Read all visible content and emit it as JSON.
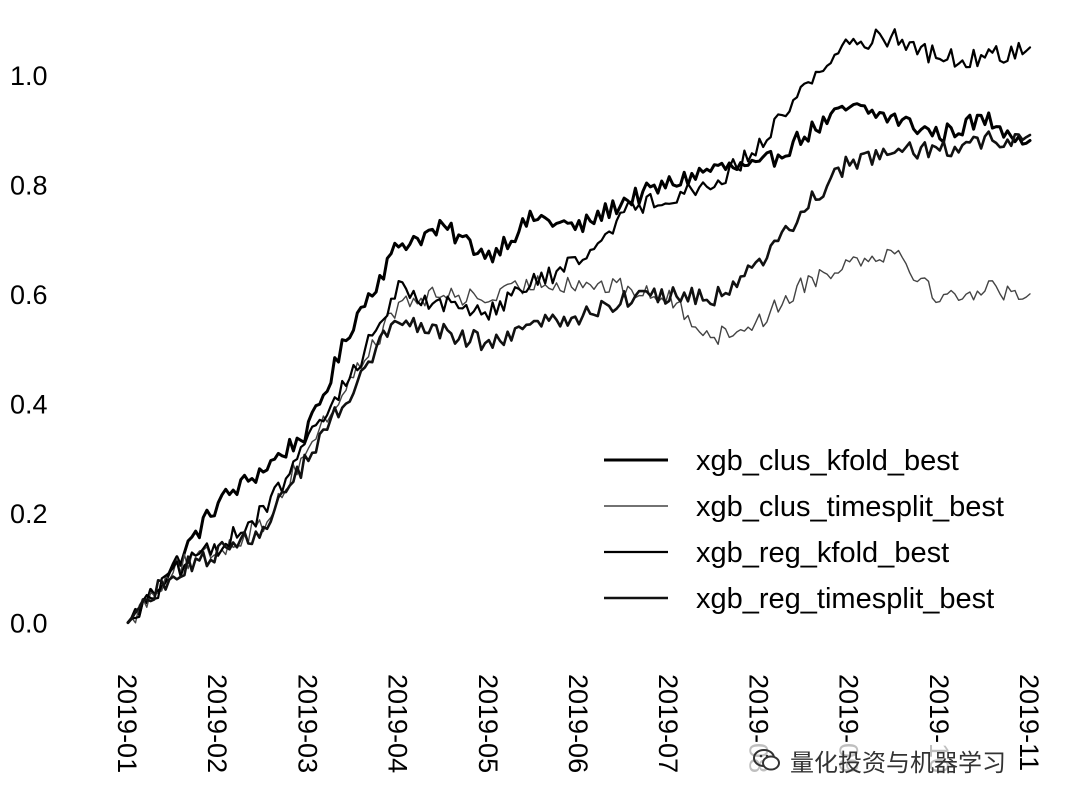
{
  "chart_data": {
    "type": "line",
    "title": "",
    "xlabel": "",
    "ylabel": "",
    "xlim": [
      "2019-01",
      "2019-11"
    ],
    "ylim": [
      -0.05,
      1.1
    ],
    "grid": false,
    "legend_position": "bottom-right",
    "x_tick_labels": [
      "2019-01",
      "2019-02",
      "2019-03",
      "2019-04",
      "2019-05",
      "2019-06",
      "2019-07",
      "2019-08",
      "2019-09",
      "2019-10",
      "2019-11"
    ],
    "y_tick_labels": [
      "0.0",
      "0.2",
      "0.4",
      "0.6",
      "0.8",
      "1.0"
    ],
    "y_ticks": [
      0.0,
      0.2,
      0.4,
      0.6,
      0.8,
      1.0
    ],
    "x": [
      "2019-01",
      "2019-01.5",
      "2019-02",
      "2019-02.5",
      "2019-03",
      "2019-03.5",
      "2019-04",
      "2019-04.5",
      "2019-05",
      "2019-05.5",
      "2019-06",
      "2019-06.5",
      "2019-07",
      "2019-07.5",
      "2019-08",
      "2019-08.5",
      "2019-09",
      "2019-09.5",
      "2019-10",
      "2019-10.5",
      "2019-11"
    ],
    "series": [
      {
        "name": "xgb_clus_kfold_best",
        "color": "#000000",
        "width": 3,
        "values": [
          0.0,
          0.1,
          0.22,
          0.28,
          0.35,
          0.55,
          0.69,
          0.72,
          0.67,
          0.74,
          0.72,
          0.77,
          0.8,
          0.83,
          0.83,
          0.89,
          0.94,
          0.92,
          0.89,
          0.92,
          0.88
        ]
      },
      {
        "name": "xgb_clus_timesplit_best",
        "color": "#444444",
        "width": 1.4,
        "values": [
          0.0,
          0.1,
          0.13,
          0.18,
          0.32,
          0.45,
          0.58,
          0.6,
          0.59,
          0.62,
          0.62,
          0.61,
          0.59,
          0.52,
          0.55,
          0.62,
          0.66,
          0.68,
          0.59,
          0.61,
          0.6
        ]
      },
      {
        "name": "xgb_reg_kfold_best",
        "color": "#000000",
        "width": 2.2,
        "values": [
          0.0,
          0.09,
          0.14,
          0.2,
          0.33,
          0.46,
          0.61,
          0.58,
          0.57,
          0.62,
          0.66,
          0.75,
          0.78,
          0.8,
          0.87,
          0.98,
          1.06,
          1.07,
          1.03,
          1.03,
          1.05
        ]
      },
      {
        "name": "xgb_reg_timesplit_best",
        "color": "#111111",
        "width": 2.6,
        "values": [
          0.0,
          0.09,
          0.13,
          0.17,
          0.3,
          0.43,
          0.56,
          0.53,
          0.51,
          0.54,
          0.56,
          0.59,
          0.6,
          0.59,
          0.65,
          0.76,
          0.84,
          0.86,
          0.86,
          0.88,
          0.89
        ]
      }
    ]
  },
  "watermark": {
    "icon": "wechat-icon",
    "text": "量化投资与机器学习"
  }
}
